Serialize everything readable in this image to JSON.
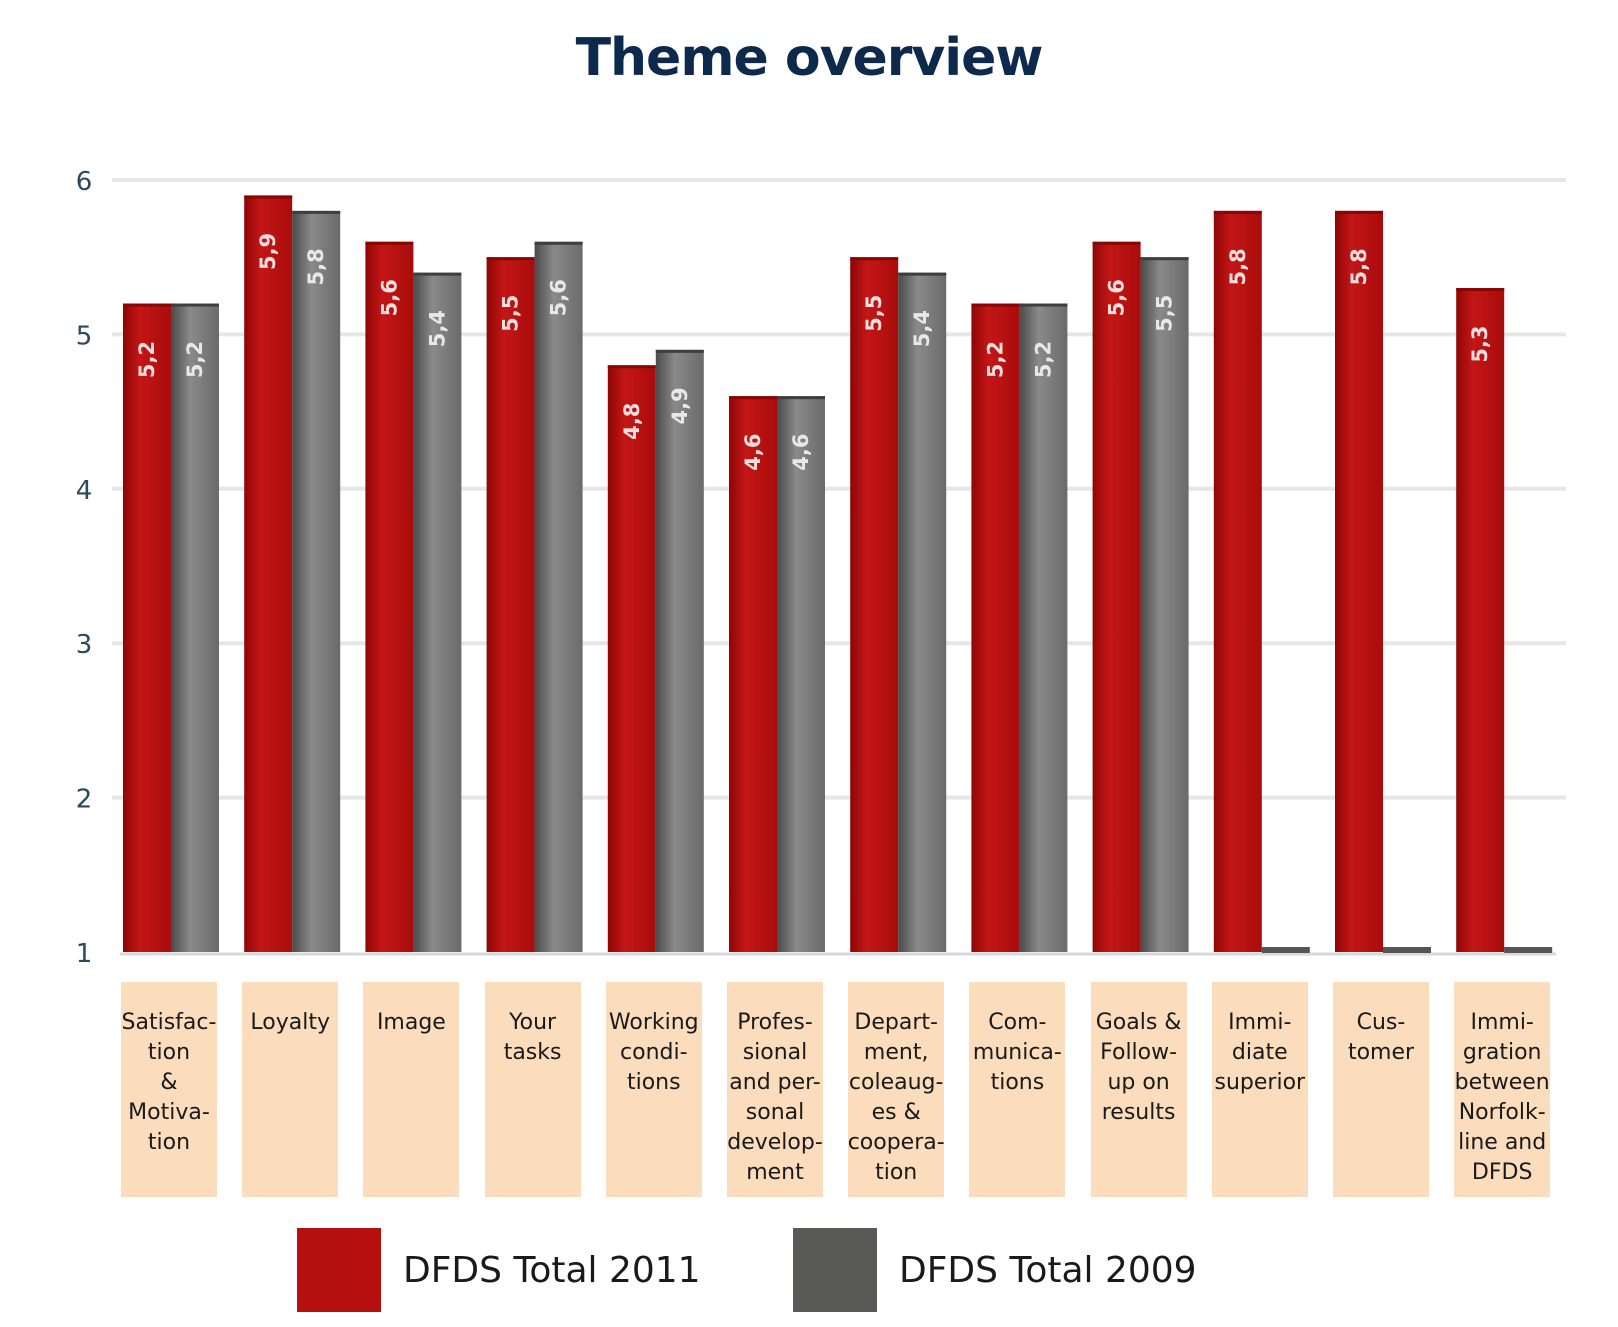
{
  "chart_data": {
    "type": "bar",
    "title": "Theme overview",
    "categories": [
      "Satisfac-\ntion\n&\nMotiva-\ntion",
      "Loyalty",
      "Image",
      "Your\ntasks",
      "Working\ncondi-\ntions",
      "Profes-\nsional\nand  per-\nsonal\ndevelop-\nment",
      "Depart-\nment,\ncoleaug-\nes &\ncoopera-\ntion",
      "Com-\nmunica-\ntions",
      "Goals &\nFollow-\nup on\nresults",
      "Immi-\ndiate\nsuperior",
      "Cus-\ntomer",
      "Immi-\ngration\nbetween\nNorfolk-\nline and\nDFDS"
    ],
    "series": [
      {
        "name": "DFDS Total 2011",
        "color": "#b50f0f",
        "values": [
          5.2,
          5.9,
          5.6,
          5.5,
          4.8,
          4.6,
          5.5,
          5.2,
          5.6,
          5.8,
          5.8,
          5.3
        ],
        "labels": [
          "5,2",
          "5,9",
          "5,6",
          "5,5",
          "4,8",
          "4,6",
          "5,5",
          "5,2",
          "5,6",
          "5,8",
          "5,8",
          "5,3"
        ]
      },
      {
        "name": "DFDS Total 2009",
        "color": "#5a5a5a",
        "values": [
          5.2,
          5.8,
          5.4,
          5.6,
          4.9,
          4.6,
          5.4,
          5.2,
          5.5,
          null,
          null,
          null
        ],
        "labels": [
          "5,2",
          "5,8",
          "5,4",
          "5,6",
          "4,9",
          "4,6",
          "5,4",
          "5,2",
          "5,5",
          "",
          "",
          ""
        ]
      }
    ],
    "yticks": [
      "1",
      "2",
      "3",
      "4",
      "5",
      "6"
    ],
    "ylim": [
      1,
      6
    ],
    "xlabel": "",
    "ylabel": "",
    "grid": true,
    "legend_position": "bottom"
  }
}
